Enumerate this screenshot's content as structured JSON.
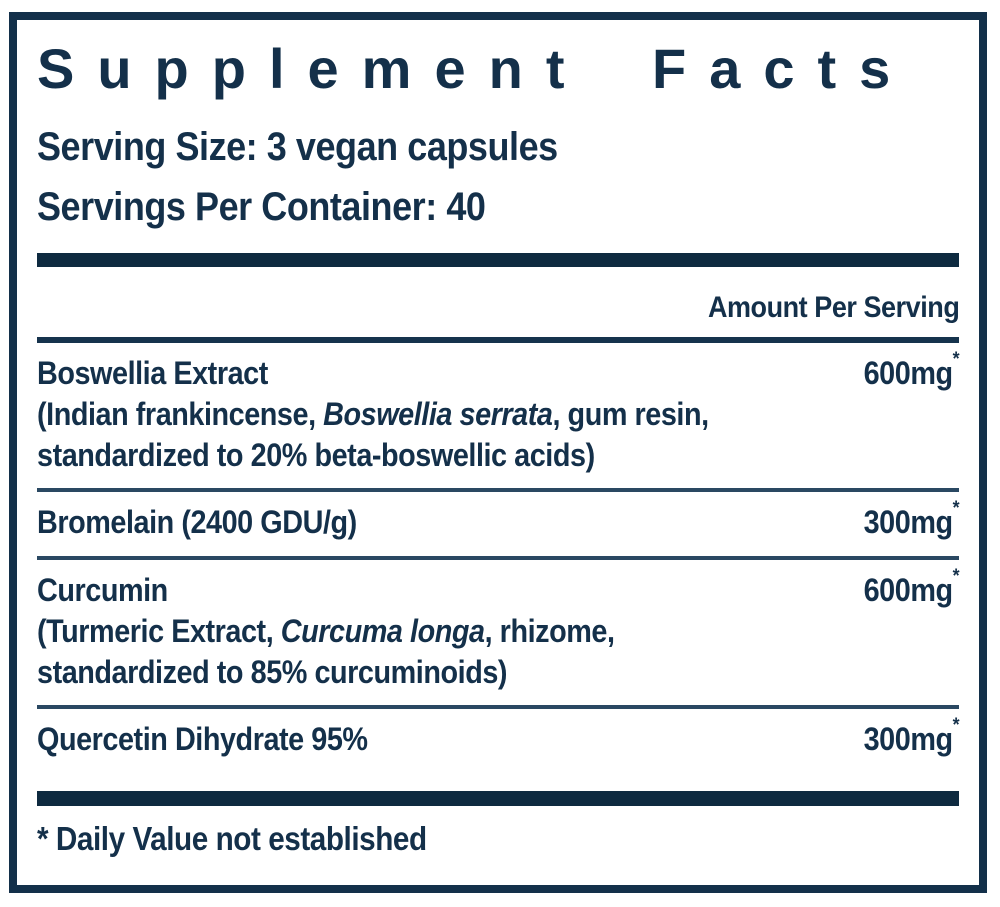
{
  "label": {
    "title": "Supplement Facts",
    "serving_size": "Serving Size: 3 vegan capsules",
    "servings_per_container": "Servings Per Container: 40",
    "amount_header": "Amount Per Serving",
    "rows": [
      {
        "name": "Boswellia Extract",
        "amount": "600mg",
        "dv": "*",
        "d1_pre": "(Indian frankincense, ",
        "d1_italic": "Boswellia serrata",
        "d1_post": ", gum resin,",
        "d2": "standardized to 20% beta-boswellic acids)"
      },
      {
        "name": "Bromelain (2400 GDU/g)",
        "amount": "300mg",
        "dv": "*"
      },
      {
        "name": "Curcumin",
        "amount": "600mg",
        "dv": "*",
        "d1_pre": "(Turmeric Extract, ",
        "d1_italic": "Curcuma longa",
        "d1_post": ", rhizome,",
        "d2": "standardized to 85% curcuminoids)"
      },
      {
        "name": "Quercetin Dihydrate 95%",
        "amount": "300mg",
        "dv": "*"
      }
    ],
    "footnote": "* Daily Value not established",
    "colors": {
      "ink": "#14304a",
      "bar": "#0e2a40",
      "rule": "#2a4862",
      "background": "#ffffff"
    }
  }
}
